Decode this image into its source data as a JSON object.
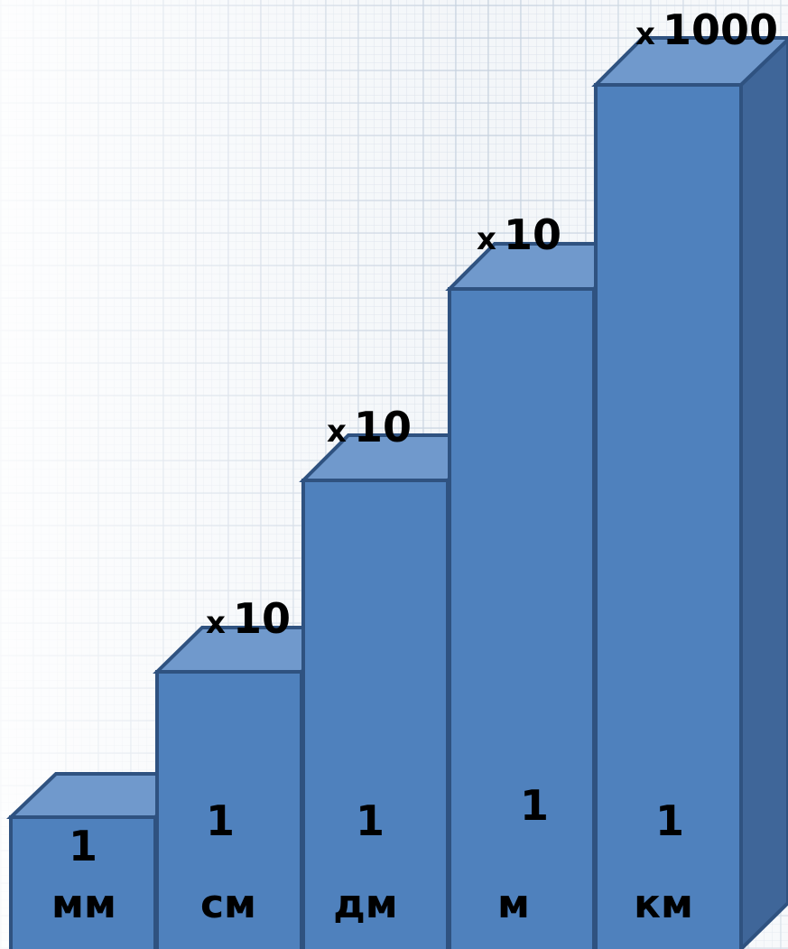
{
  "steps": [
    {
      "number": "1",
      "unit": "мм"
    },
    {
      "number": "1",
      "unit": "см",
      "multiplier_x": "x",
      "multiplier_value": "10"
    },
    {
      "number": "1",
      "unit": "дм",
      "multiplier_x": "x",
      "multiplier_value": "10"
    },
    {
      "number": "1",
      "unit": "м",
      "multiplier_x": "x",
      "multiplier_value": "10"
    },
    {
      "number": "1",
      "unit": "км",
      "multiplier_x": "x",
      "multiplier_value": "1000"
    }
  ],
  "colors": {
    "front": "#4f81bd",
    "top": "#7099cc",
    "side": "#3f6699",
    "edge": "#2f5280"
  }
}
